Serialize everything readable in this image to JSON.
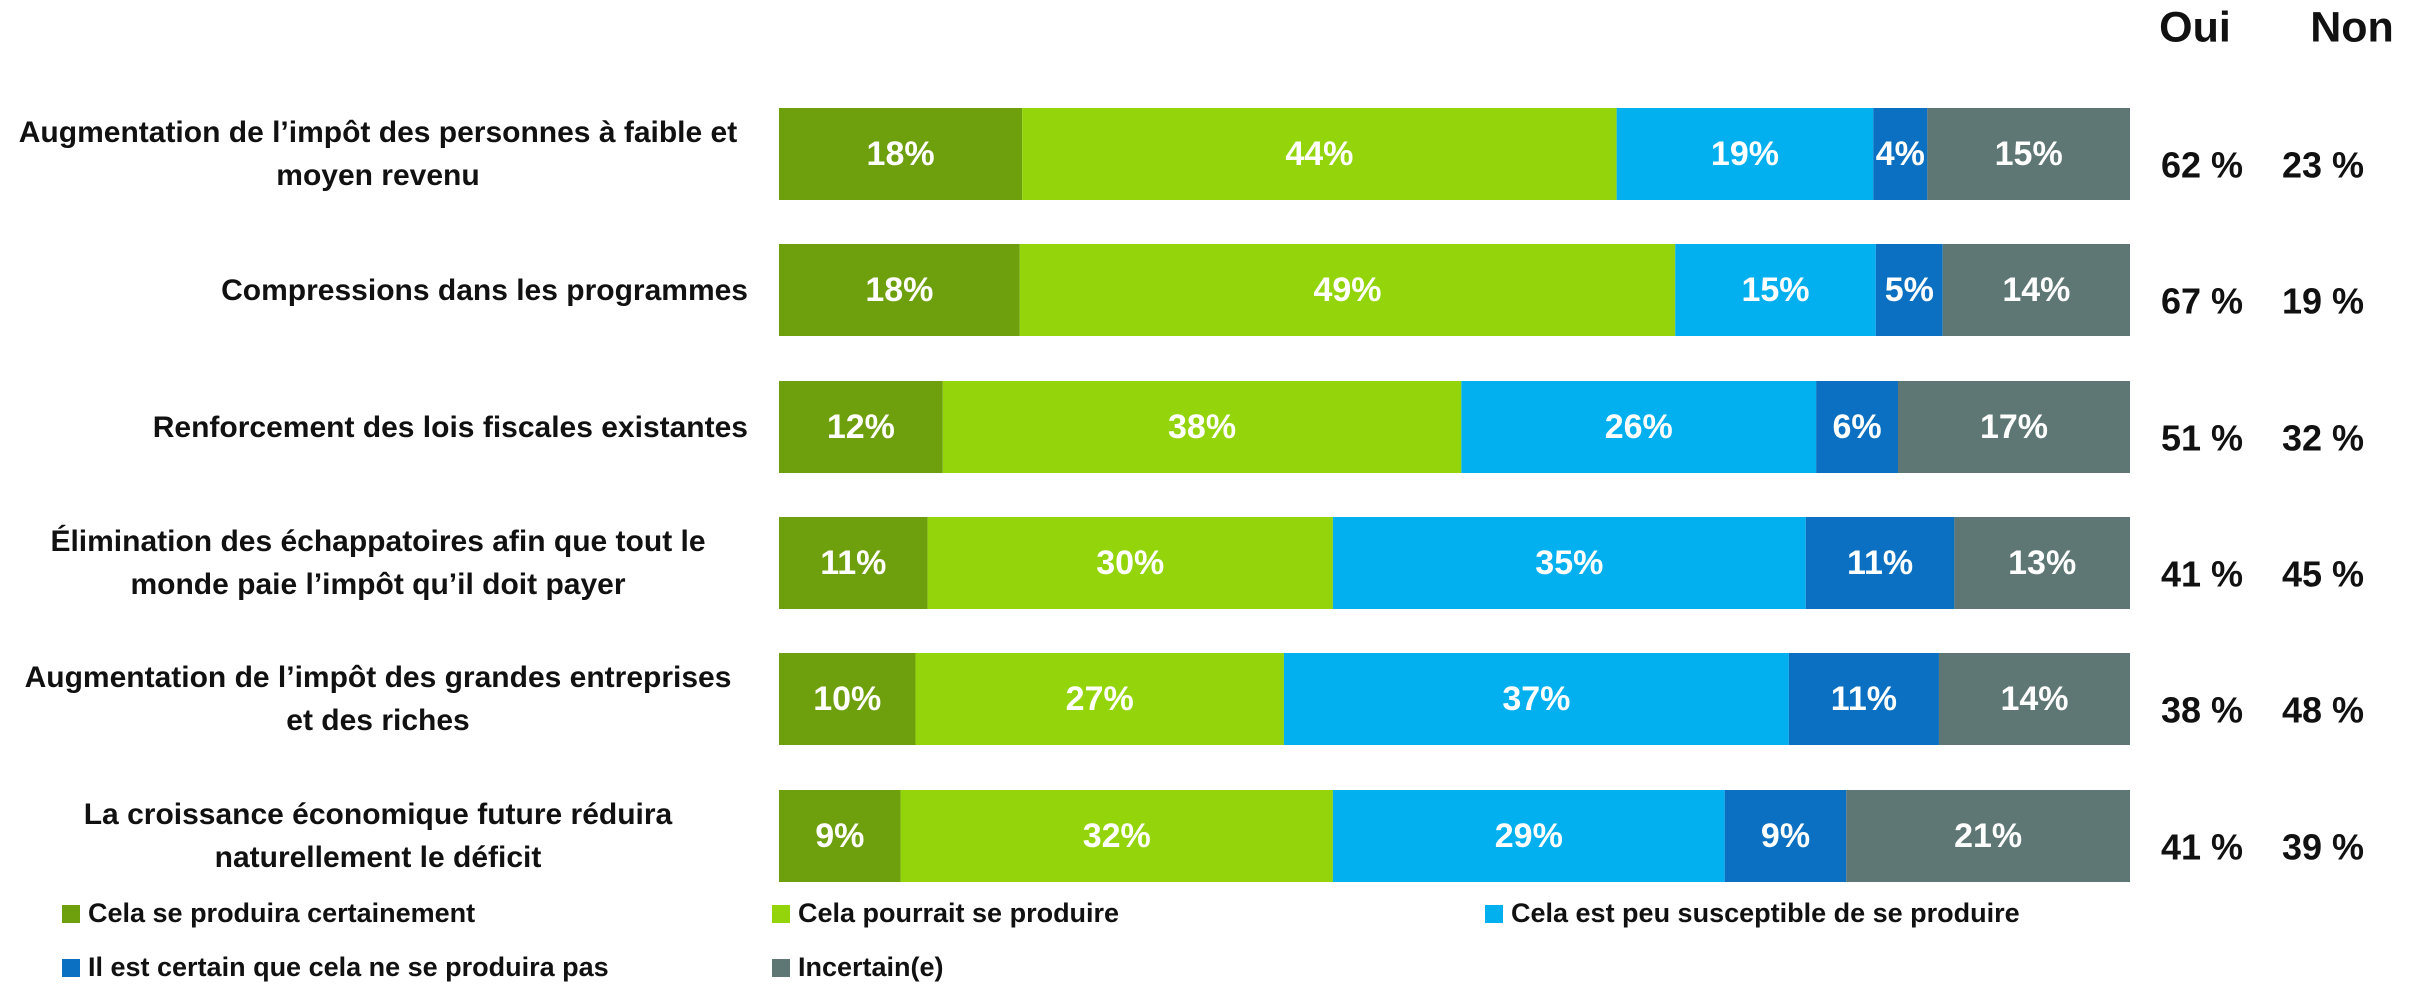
{
  "chart_data": {
    "type": "stacked-bar-horizontal",
    "categories": [
      "Augmentation de l’impôt des personnes à faible et moyen revenu",
      "Compressions dans les programmes",
      "Renforcement des lois fiscales existantes",
      "Élimination des échappatoires afin que tout le monde paie l’impôt qu’il doit payer",
      "Augmentation de l’impôt des grandes entreprises et des riches",
      "La croissance économique future réduira naturellement le déficit"
    ],
    "series": [
      {
        "name": "Cela se produira certainement",
        "color": "#6e9f0d",
        "values": [
          18,
          18,
          12,
          11,
          10,
          9
        ],
        "value_labels": [
          "18%",
          "18%",
          "12%",
          "11%",
          "10%",
          "9%"
        ]
      },
      {
        "name": "Cela pourrait se produire",
        "color": "#93d50a",
        "values": [
          44,
          49,
          38,
          30,
          27,
          32
        ],
        "value_labels": [
          "44%",
          "49%",
          "38%",
          "30%",
          "27%",
          "32%"
        ]
      },
      {
        "name": "Cela est peu susceptible de se produire",
        "color": "#03b0ef",
        "values": [
          19,
          15,
          26,
          35,
          37,
          29
        ],
        "value_labels": [
          "19%",
          "15%",
          "26%",
          "35%",
          "37%",
          "29%"
        ]
      },
      {
        "name": "Il est certain que cela ne se produira pas",
        "color": "#0b70c1",
        "values": [
          4,
          5,
          6,
          11,
          11,
          9
        ],
        "value_labels": [
          "4%",
          "5%",
          "6%",
          "11%",
          "11%",
          "9%"
        ]
      },
      {
        "name": "Incertain(e)",
        "color": "#5e7774",
        "values": [
          15,
          14,
          17,
          13,
          14,
          21
        ],
        "value_labels": [
          "15%",
          "14%",
          "17%",
          "13%",
          "14%",
          "21%"
        ]
      }
    ],
    "summary_columns": [
      {
        "name": "Oui",
        "values": [
          62,
          67,
          51,
          41,
          38,
          41
        ],
        "value_labels": [
          "62 %",
          "67 %",
          "51 %",
          "41 %",
          "38 %",
          "41 %"
        ]
      },
      {
        "name": "Non",
        "values": [
          23,
          19,
          32,
          45,
          48,
          39
        ],
        "value_labels": [
          "23 %",
          "19 %",
          "32 %",
          "45 %",
          "48 %",
          "39 %"
        ]
      }
    ]
  }
}
